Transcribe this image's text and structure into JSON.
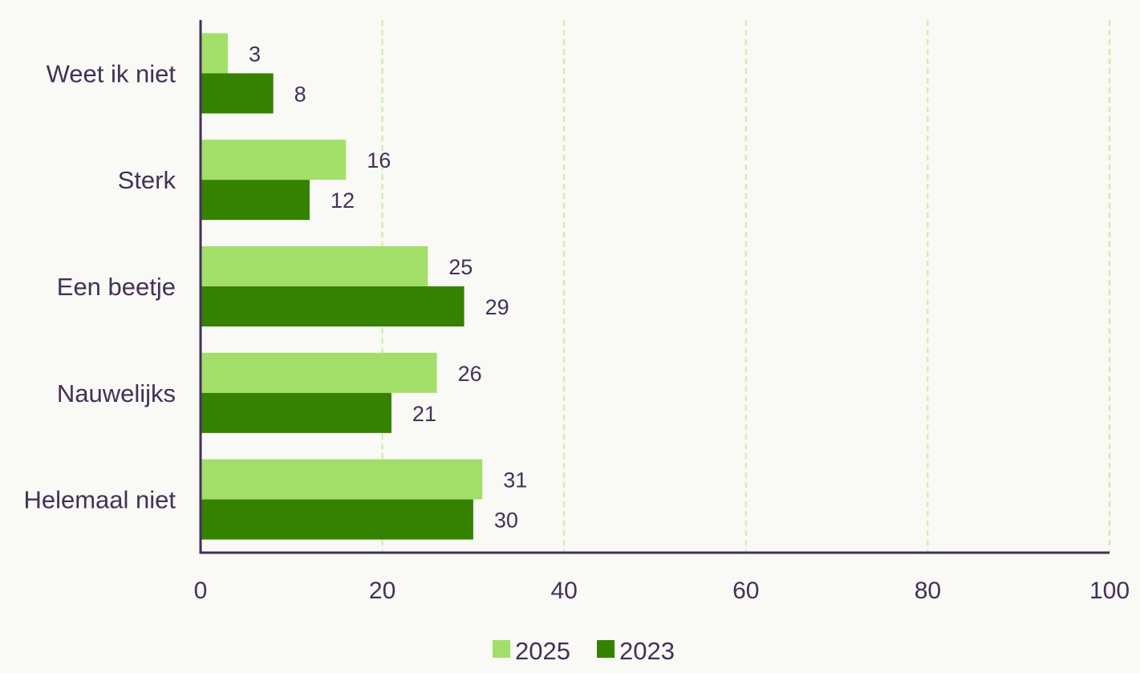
{
  "chart_data": {
    "type": "bar",
    "orientation": "horizontal",
    "categories": [
      "Helemaal niet",
      "Nauwelijks",
      "Een beetje",
      "Sterk",
      "Weet ik niet"
    ],
    "series": [
      {
        "name": "2025",
        "values": [
          31,
          26,
          25,
          16,
          3
        ],
        "color": "#a2df68"
      },
      {
        "name": "2023",
        "values": [
          30,
          21,
          29,
          12,
          8
        ],
        "color": "#348200"
      }
    ],
    "xlim": [
      0,
      100
    ],
    "xticks": [
      0,
      20,
      40,
      60,
      80,
      100
    ],
    "grid": "vertical-dashed",
    "grid_color": "#c6f0a0",
    "axis_color": "#44305a",
    "text_color": "#44305a",
    "legend_position": "bottom-center",
    "data_labels": true
  }
}
